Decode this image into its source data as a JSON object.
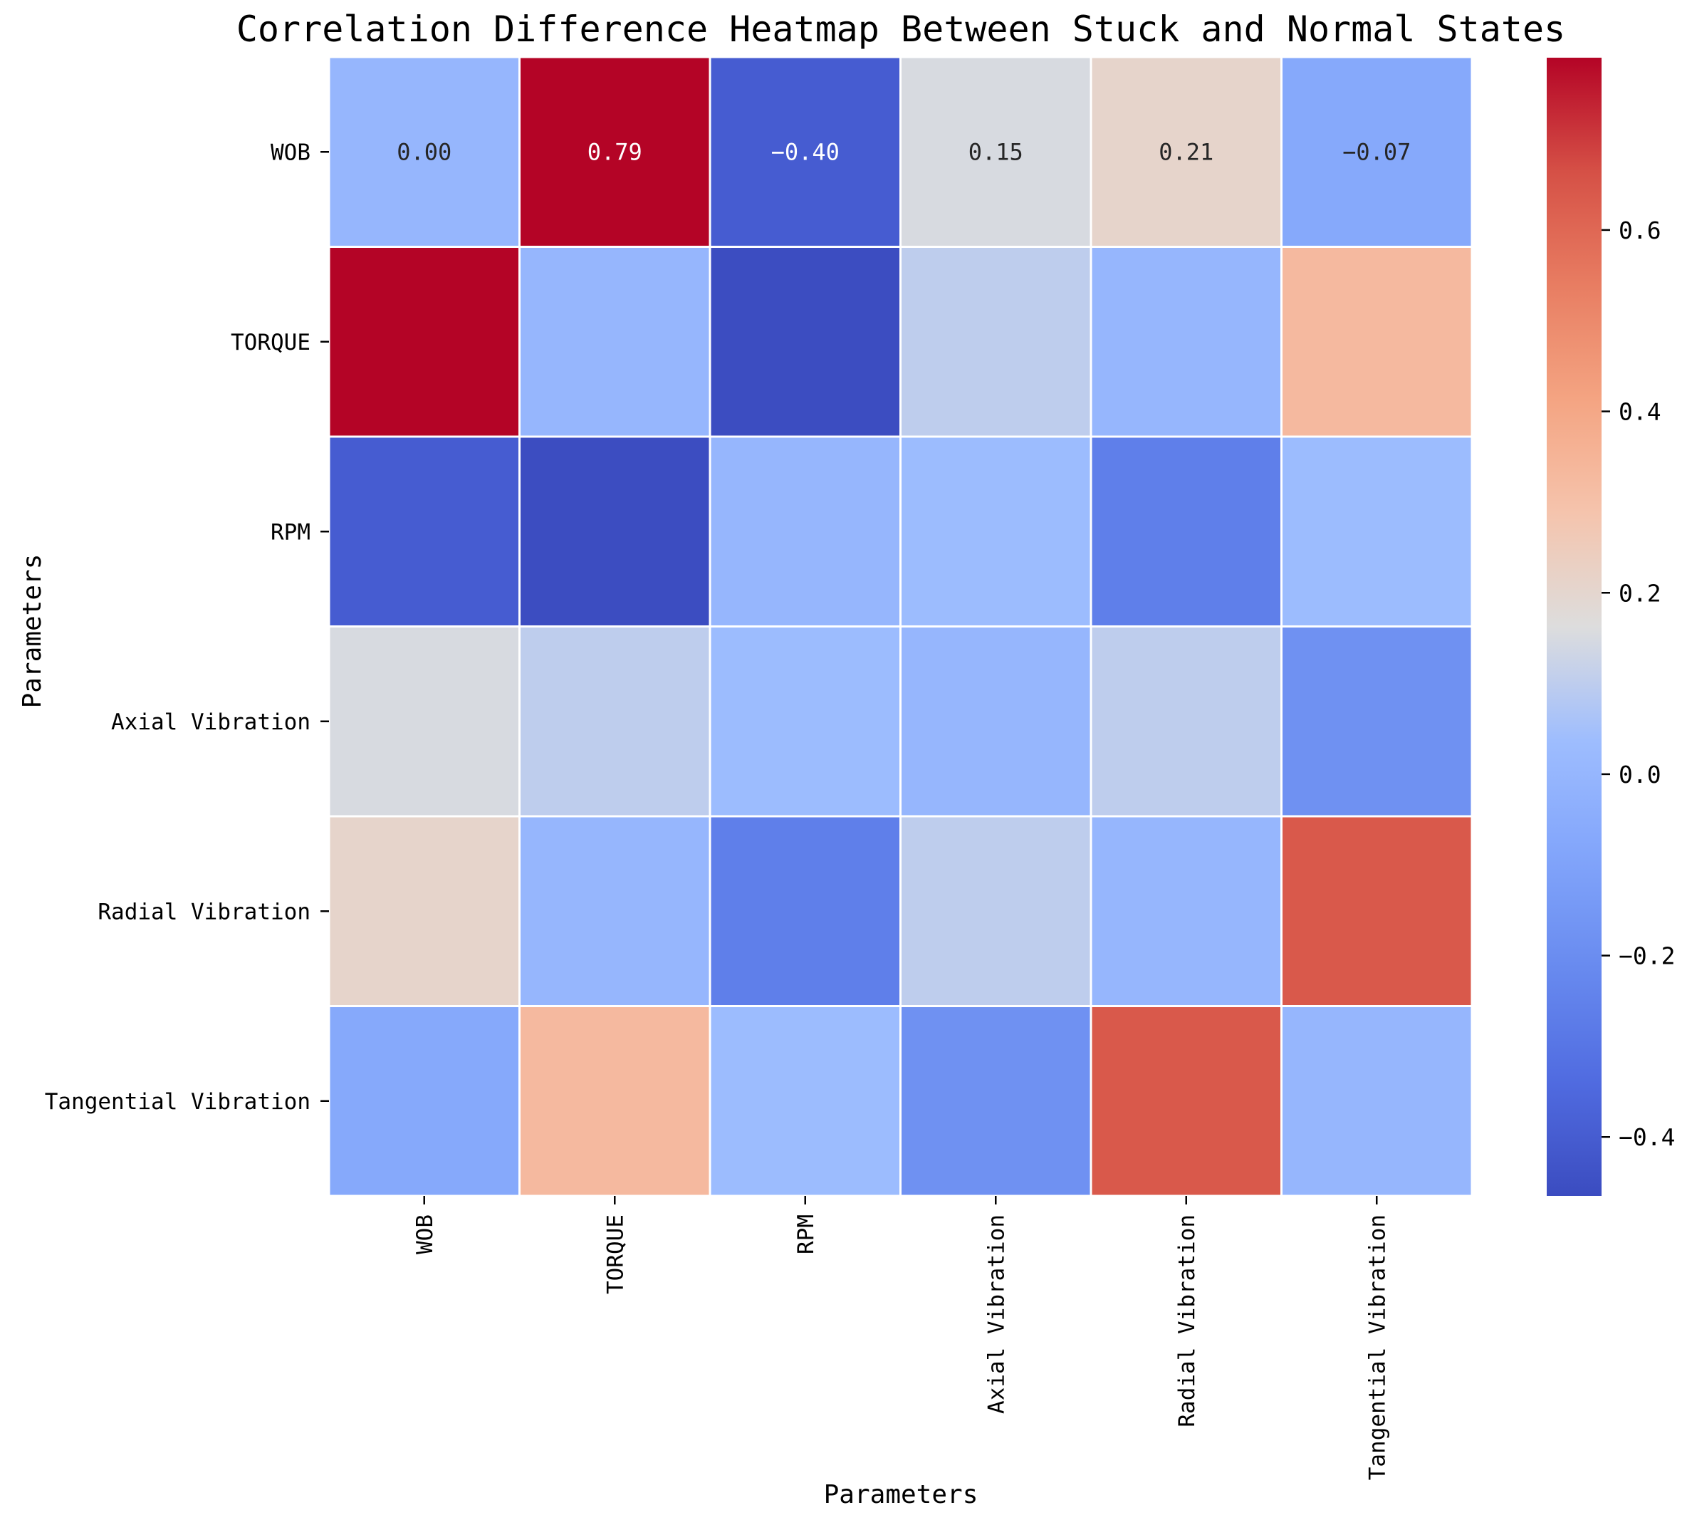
{
  "chart_data": {
    "type": "heatmap",
    "title": "Correlation Difference Heatmap Between Stuck and Normal States",
    "xlabel": "Parameters",
    "ylabel": "Parameters",
    "rows": [
      "WOB",
      "TORQUE",
      "RPM",
      "Axial Vibration",
      "Radial Vibration",
      "Tangential Vibration"
    ],
    "columns": [
      "WOB",
      "TORQUE",
      "RPM",
      "Axial Vibration",
      "Radial Vibration",
      "Tangential Vibration"
    ],
    "values": [
      [
        0.0,
        0.79,
        -0.4,
        0.15,
        0.21,
        -0.07
      ],
      [
        0.79,
        0.0,
        -0.46,
        0.1,
        0.0,
        0.33
      ],
      [
        -0.4,
        -0.46,
        0.0,
        0.03,
        -0.26,
        0.03
      ],
      [
        0.15,
        0.1,
        0.03,
        0.0,
        0.1,
        -0.18
      ],
      [
        0.21,
        0.0,
        -0.26,
        0.1,
        0.0,
        0.64
      ],
      [
        -0.07,
        0.33,
        0.03,
        -0.18,
        0.64,
        0.0
      ]
    ],
    "cell_labels": [
      [
        "0.00",
        "0.79",
        "-0.40",
        "0.15",
        "0.21",
        "-0.07"
      ]
    ],
    "colormap": "coolwarm",
    "colorbar": {
      "min": -0.465,
      "max": 0.79,
      "ticks": [
        -0.4,
        -0.2,
        0.0,
        0.2,
        0.4,
        0.6
      ],
      "tick_labels": [
        "-0.4",
        "-0.2",
        "0.0",
        "0.2",
        "0.4",
        "0.6"
      ],
      "position": "right"
    },
    "grid": true
  }
}
